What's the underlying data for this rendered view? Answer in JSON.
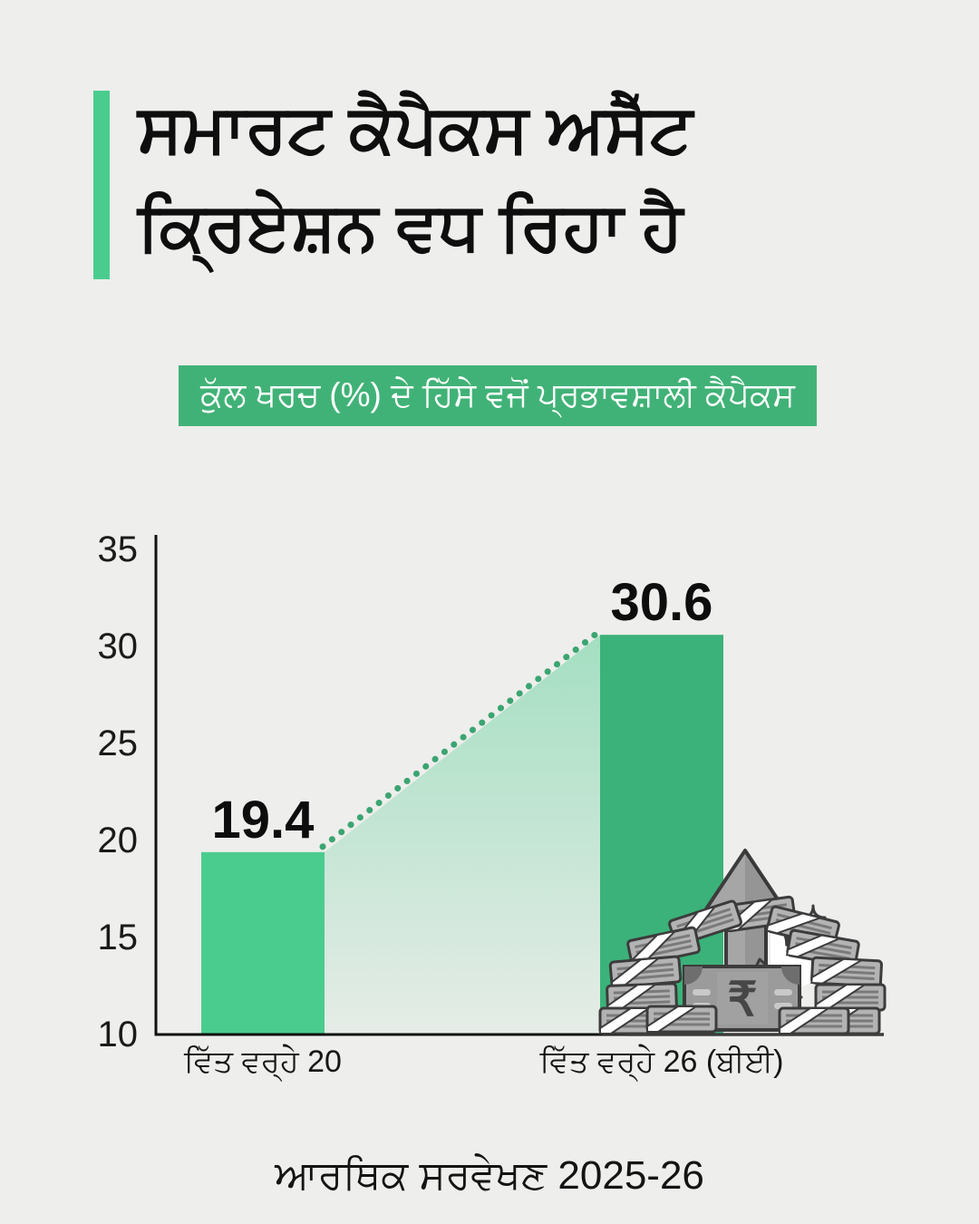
{
  "page": {
    "background_color": "#EEEEEC",
    "accent_color": "#4ACC8E",
    "title_line1": "ਸਮਾਰਟ ਕੈਪੈਕਸ ਅਸੈੱਟ",
    "title_line2": "ਕ੍ਰਿਏਸ਼ਨ ਵਧ ਰਿਹਾ ਹੈ",
    "footer": "ਆਰਥਿਕ ਸਰਵੇਖਣ 2025-26"
  },
  "banner": {
    "label": "ਕੁੱਲ ਖਰਚ (%) ਦੇ ਹਿੱਸੇ ਵਜੋਂ ਪ੍ਰਭਾਵਸ਼ਾਲੀ ਕੈਪੈਕਸ",
    "background_color": "#41B277",
    "text_color": "#FFFFFF"
  },
  "chart_data": {
    "type": "bar",
    "title": "ਕੁੱਲ ਖਰਚ (%) ਦੇ ਹਿੱਸੇ ਵਜੋਂ ਪ੍ਰਭਾਵਸ਼ਾਲੀ ਕੈਪੈਕਸ",
    "categories": [
      "ਵਿੱਤ ਵਰ੍ਹੇ 20",
      "ਵਿੱਤ ਵਰ੍ਹੇ 26 (ਬੀਈ)"
    ],
    "values": [
      19.4,
      30.6
    ],
    "value_labels": [
      "19.4",
      "30.6"
    ],
    "bar_colors": [
      "#4ACC8E",
      "#3BB279"
    ],
    "y_ticks": [
      35,
      30,
      25,
      20,
      15,
      10
    ],
    "ylim": [
      10,
      35.8
    ],
    "xlabel": "",
    "ylabel": "",
    "grid": false,
    "legend": false,
    "trend_dotted_line": true,
    "trend_line_color": "#3BA571",
    "trend_fill_color": "#4ACC8E"
  },
  "illustration": {
    "rupee_symbol": "₹"
  }
}
